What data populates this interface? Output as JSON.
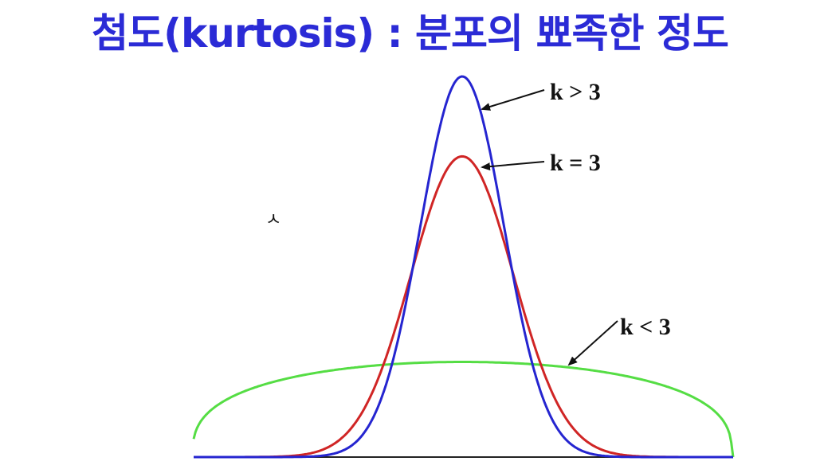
{
  "title": "첨도(kurtosis) : 분포의 뾰족한 정도",
  "stray_glyph": "ㅅ",
  "curves": [
    {
      "label": "k > 3",
      "color": "#2525d0",
      "kind": "leptokurtic",
      "peak_height": 1.0,
      "width": 0.155
    },
    {
      "label": "k = 3",
      "color": "#d02525",
      "kind": "mesokurtic",
      "peak_height": 0.79,
      "width": 0.19
    },
    {
      "label": "k < 3",
      "color": "#55dd44",
      "kind": "platykurtic",
      "peak_height": 0.25,
      "width": 1.0
    }
  ],
  "colors": {
    "title": "#2b2bd6",
    "axis": "#222222"
  }
}
